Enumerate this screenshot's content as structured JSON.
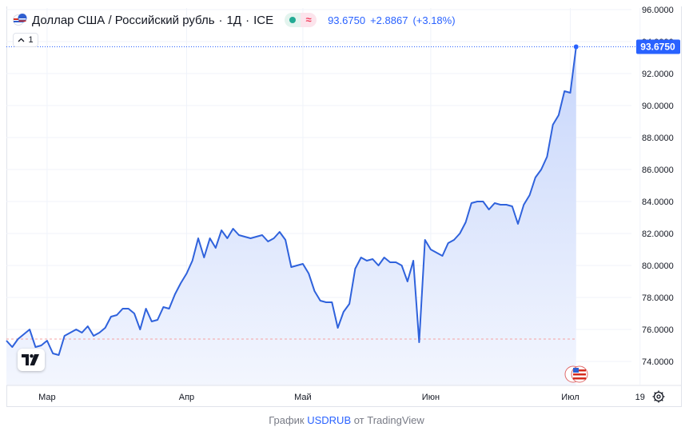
{
  "legend": {
    "symbol_name": "Доллар США / Российский рубль",
    "interval": "1Д",
    "exchange": "ICE",
    "sep1": "·",
    "sep2": "·",
    "last_price": "93.6750",
    "change": "+2.8867",
    "change_pct": "(+3.18%)",
    "delay_icon": "≈",
    "status": "market-open-dot"
  },
  "toggle": {
    "label": "1",
    "icon": "chevron-up-icon"
  },
  "price_label": "93.6750",
  "colors": {
    "line": "#2962ff",
    "line_stroke": "#2f62dc",
    "fill_top": "#c7d6fb",
    "fill_bottom": "#f3f6fe",
    "baseline_up": "#6ec3be",
    "baseline_down": "#f5a3a3",
    "grid": "#f0f3fa",
    "axis_text": "#131722"
  },
  "footer": {
    "prefix": "График ",
    "link": "USDRUB",
    "suffix": " от TradingView"
  },
  "chart_data": {
    "type": "area",
    "title": "Доллар США / Российский рубль · 1Д · ICE",
    "y_ticks": [
      "96.0000",
      "94.0000",
      "92.0000",
      "90.0000",
      "88.0000",
      "86.0000",
      "84.0000",
      "82.0000",
      "80.0000",
      "78.0000",
      "76.0000",
      "74.0000"
    ],
    "ylim": [
      73.0,
      96.0
    ],
    "x_ticks": [
      {
        "label": "Мар",
        "index": 7
      },
      {
        "label": "Апр",
        "index": 31
      },
      {
        "label": "Май",
        "index": 51
      },
      {
        "label": "Июн",
        "index": 73
      },
      {
        "label": "Июл",
        "index": 97
      },
      {
        "label": "19",
        "index": 109
      }
    ],
    "baseline": 75.4,
    "last_value": 93.675,
    "grid": true,
    "values": [
      75.3,
      74.9,
      75.4,
      75.7,
      76.0,
      74.9,
      75.0,
      75.3,
      74.5,
      74.4,
      75.6,
      75.8,
      76.0,
      75.8,
      76.2,
      75.6,
      75.8,
      76.1,
      76.8,
      76.9,
      77.3,
      77.3,
      77.0,
      76.0,
      77.3,
      76.5,
      76.6,
      77.4,
      77.3,
      78.2,
      78.9,
      79.5,
      80.3,
      81.7,
      80.5,
      81.7,
      81.1,
      82.2,
      81.7,
      82.3,
      81.9,
      81.8,
      81.7,
      81.8,
      81.9,
      81.5,
      81.7,
      82.1,
      81.6,
      79.9,
      80.0,
      80.1,
      79.5,
      78.4,
      77.8,
      77.7,
      77.7,
      76.1,
      77.1,
      77.6,
      79.8,
      80.5,
      80.3,
      80.4,
      80.0,
      80.5,
      80.2,
      80.2,
      80.0,
      79.0,
      80.3,
      75.2,
      81.6,
      81.0,
      80.8,
      80.6,
      81.4,
      81.6,
      82.0,
      82.7,
      83.9,
      84.0,
      84.0,
      83.5,
      83.9,
      83.8,
      83.8,
      83.7,
      82.6,
      83.8,
      84.4,
      85.5,
      86.0,
      86.8,
      88.8,
      89.4,
      90.9,
      90.8,
      93.675
    ]
  }
}
